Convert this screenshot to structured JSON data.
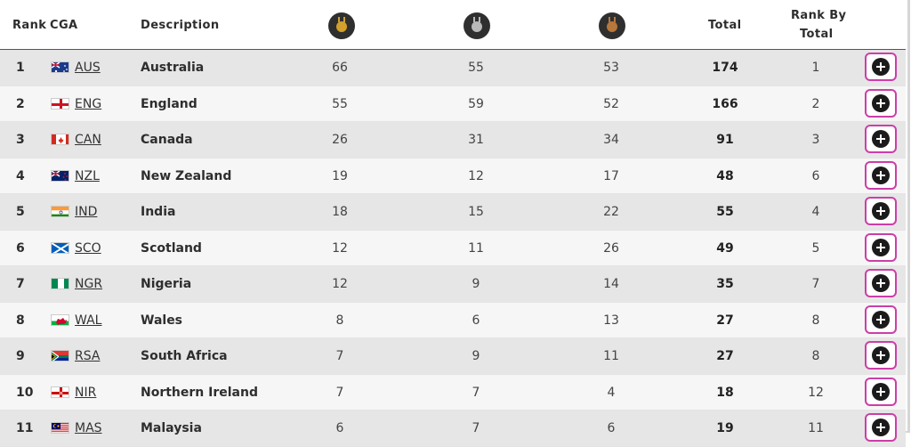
{
  "header": {
    "rank": "Rank",
    "cga": "CGA",
    "description": "Description",
    "total": "Total",
    "rank_by_total_line1": "Rank By",
    "rank_by_total_line2": "Total",
    "medals": {
      "gold": "#d4a02c",
      "silver": "#b9b9b9",
      "bronze": "#b8773b"
    }
  },
  "rows": [
    {
      "rank": "1",
      "code": "AUS",
      "flag": "flag-aus-icon",
      "description": "Australia",
      "gold": "66",
      "silver": "55",
      "bronze": "53",
      "total": "174",
      "rank_by_total": "1"
    },
    {
      "rank": "2",
      "code": "ENG",
      "flag": "flag-eng-icon",
      "description": "England",
      "gold": "55",
      "silver": "59",
      "bronze": "52",
      "total": "166",
      "rank_by_total": "2"
    },
    {
      "rank": "3",
      "code": "CAN",
      "flag": "flag-can-icon",
      "description": "Canada",
      "gold": "26",
      "silver": "31",
      "bronze": "34",
      "total": "91",
      "rank_by_total": "3"
    },
    {
      "rank": "4",
      "code": "NZL",
      "flag": "flag-nzl-icon",
      "description": "New Zealand",
      "gold": "19",
      "silver": "12",
      "bronze": "17",
      "total": "48",
      "rank_by_total": "6"
    },
    {
      "rank": "5",
      "code": "IND",
      "flag": "flag-ind-icon",
      "description": "India",
      "gold": "18",
      "silver": "15",
      "bronze": "22",
      "total": "55",
      "rank_by_total": "4"
    },
    {
      "rank": "6",
      "code": "SCO",
      "flag": "flag-sco-icon",
      "description": "Scotland",
      "gold": "12",
      "silver": "11",
      "bronze": "26",
      "total": "49",
      "rank_by_total": "5"
    },
    {
      "rank": "7",
      "code": "NGR",
      "flag": "flag-ngr-icon",
      "description": "Nigeria",
      "gold": "12",
      "silver": "9",
      "bronze": "14",
      "total": "35",
      "rank_by_total": "7"
    },
    {
      "rank": "8",
      "code": "WAL",
      "flag": "flag-wal-icon",
      "description": "Wales",
      "gold": "8",
      "silver": "6",
      "bronze": "13",
      "total": "27",
      "rank_by_total": "8"
    },
    {
      "rank": "9",
      "code": "RSA",
      "flag": "flag-rsa-icon",
      "description": "South Africa",
      "gold": "7",
      "silver": "9",
      "bronze": "11",
      "total": "27",
      "rank_by_total": "8"
    },
    {
      "rank": "10",
      "code": "NIR",
      "flag": "flag-nir-icon",
      "description": "Northern Ireland",
      "gold": "7",
      "silver": "7",
      "bronze": "4",
      "total": "18",
      "rank_by_total": "12"
    },
    {
      "rank": "11",
      "code": "MAS",
      "flag": "flag-mas-icon",
      "description": "Malaysia",
      "gold": "6",
      "silver": "7",
      "bronze": "6",
      "total": "19",
      "rank_by_total": "11"
    }
  ],
  "colors": {
    "accent_border": "#cc3ea8",
    "row_odd": "#e6e6e6",
    "row_even": "#f6f6f6"
  }
}
